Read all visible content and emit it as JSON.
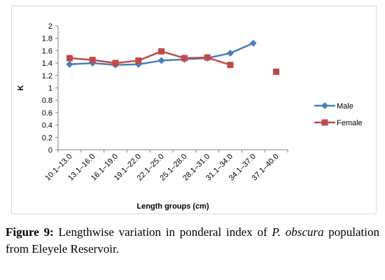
{
  "chart_data": {
    "type": "line",
    "title": "",
    "xlabel": "Length groups (cm)",
    "ylabel": "K",
    "ylim": [
      0,
      2
    ],
    "yticks": [
      "0",
      "0.2",
      "0.4",
      "0.6",
      "0.8",
      "1",
      "1.2",
      "1.4",
      "1.6",
      "1.8",
      "2"
    ],
    "categories": [
      "10.1–13.0",
      "13.1–16.0",
      "16.1–19.0",
      "19.1–22.0",
      "22.1–25.0",
      "25.1–28.0",
      "28.1–31.0",
      "31.1–34.0",
      "34.1–37.0",
      "37.1–40.0"
    ],
    "legend_position": "right",
    "grid": false,
    "series": [
      {
        "name": "Male",
        "color": "#4a7ebb",
        "marker": "diamond",
        "values": [
          1.38,
          1.4,
          1.37,
          1.38,
          1.44,
          1.46,
          1.48,
          1.56,
          1.72,
          null
        ]
      },
      {
        "name": "Female",
        "color": "#be4b48",
        "marker": "square",
        "values": [
          1.48,
          1.45,
          1.4,
          1.44,
          1.59,
          1.48,
          1.49,
          1.37,
          null,
          1.26
        ]
      }
    ]
  },
  "caption": {
    "label": "Figure 9:",
    "text_before": " Lengthwise variation in ponderal index of ",
    "species": "P. obscura",
    "text_after": " population from Eleyele Reservoir."
  }
}
